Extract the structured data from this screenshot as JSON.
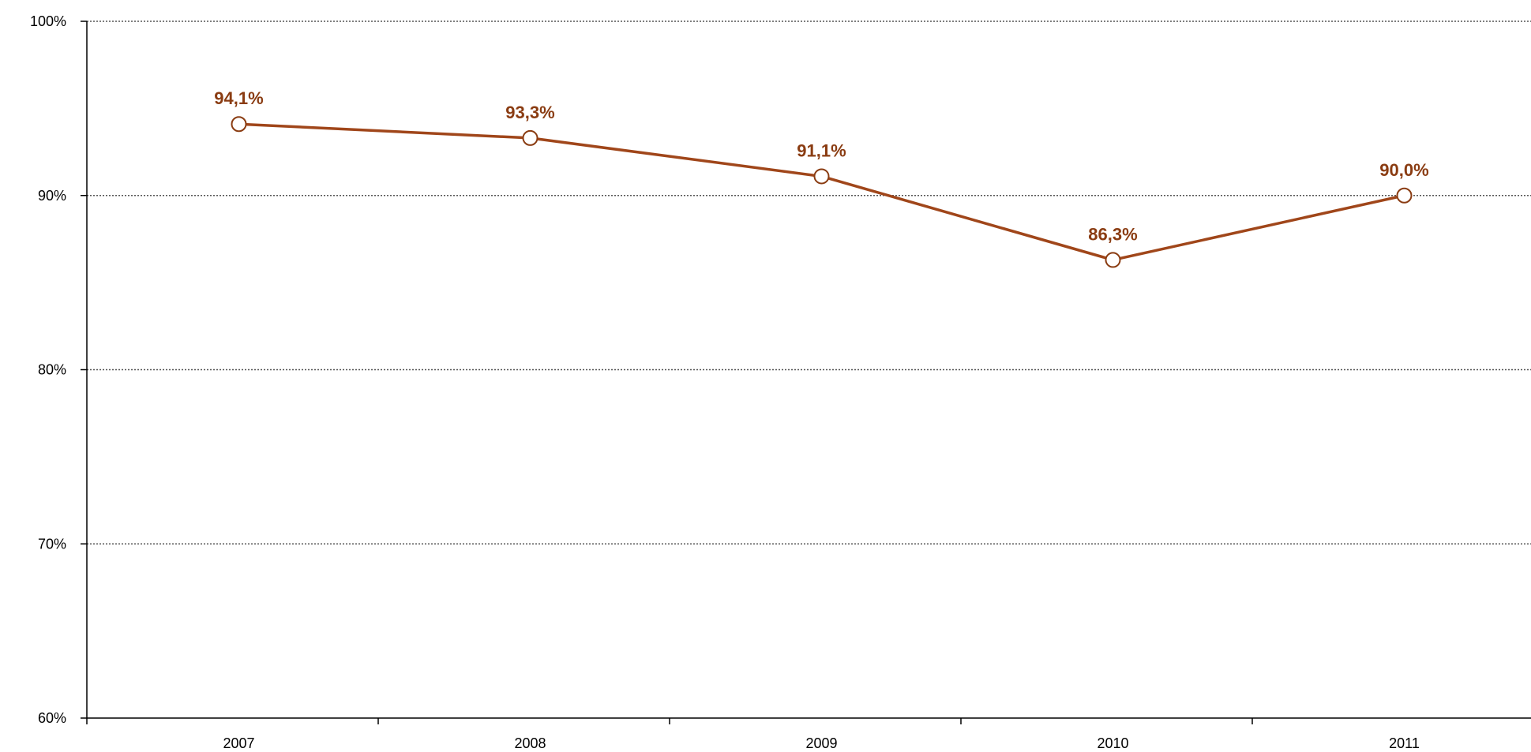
{
  "chart_data": {
    "type": "line",
    "categories": [
      "2007",
      "2008",
      "2009",
      "2010",
      "2011"
    ],
    "series": [
      {
        "values": [
          94.1,
          93.3,
          91.1,
          86.3,
          90.0
        ]
      }
    ],
    "data_labels": [
      "94,1%",
      "93,3%",
      "91,1%",
      "86,3%",
      "90,0%"
    ],
    "ylim": [
      60,
      100
    ],
    "y_ticks": [
      60,
      70,
      80,
      90,
      100
    ],
    "y_tick_labels": [
      "60%",
      "70%",
      "80%",
      "90%",
      "100%"
    ],
    "gridlines": true,
    "title": "",
    "xlabel": "",
    "ylabel": "",
    "colors": {
      "line": "#a0461a",
      "marker_fill": "#ffffff",
      "marker_stroke": "#8a3c12",
      "label": "#8a3c12",
      "axis": "#000000",
      "grid": "#555555"
    }
  }
}
